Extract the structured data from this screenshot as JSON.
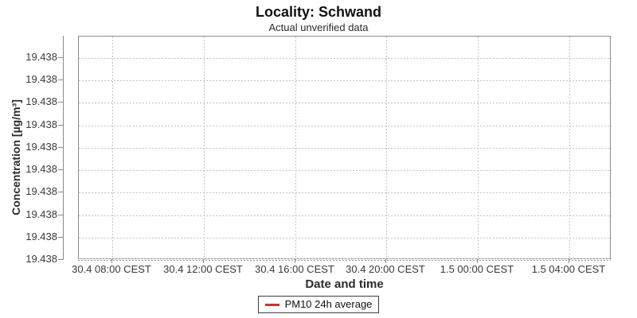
{
  "chart_data": {
    "type": "line",
    "title": "Locality: Schwand",
    "subtitle": "Actual unverified data",
    "xlabel": "Date and time",
    "ylabel": "Concentration [µg/m³]",
    "x_tick_labels": [
      "30.4 08:00 CEST",
      "30.4 12:00 CEST",
      "30.4 16:00 CEST",
      "30.4 20:00 CEST",
      "1.5 00:00 CEST",
      "1.5 04:00 CEST"
    ],
    "y_tick_labels": [
      "19.438",
      "19.438",
      "19.438",
      "19.438",
      "19.438",
      "19.438",
      "19.438",
      "19.438",
      "19.438",
      "19.438"
    ],
    "ylim": [
      19.438,
      19.438
    ],
    "grid": true,
    "legend_position": "bottom",
    "series": [
      {
        "name": "PM10 24h average",
        "color": "#cc3333",
        "values": [
          19.438
        ]
      }
    ],
    "legend": {
      "entries": [
        {
          "label": "PM10 24h average",
          "swatch_color": "#cc3333"
        }
      ]
    },
    "colors": {
      "axis": "#8a8a8a",
      "grid": "#c3c3c3",
      "series_red": "#cc3333"
    }
  }
}
